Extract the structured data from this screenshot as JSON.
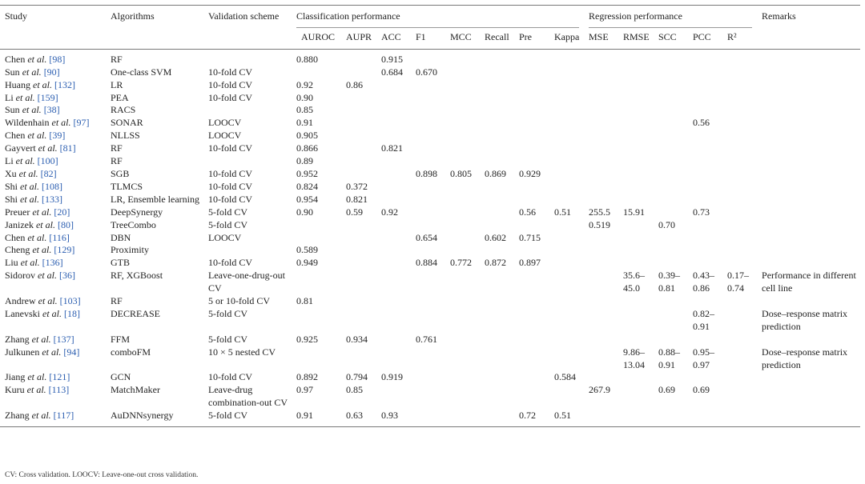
{
  "header": {
    "study": "Study",
    "algorithms": "Algorithms",
    "validation": "Validation scheme",
    "classification": "Classification performance",
    "regression": "Regression performance",
    "remarks": "Remarks",
    "metrics": [
      "AUROC",
      "AUPR",
      "ACC",
      "F1",
      "MCC",
      "Recall",
      "Pre",
      "Kappa",
      "MSE",
      "RMSE",
      "SCC",
      "PCC",
      "R²"
    ]
  },
  "table": {
    "rows": [
      {
        "study": {
          "name": "Chen",
          "etal": "et al.",
          "ref": "[98]"
        },
        "cells": [
          "RF",
          null,
          "0.880",
          null,
          "0.915",
          null,
          null,
          null,
          null,
          null,
          null,
          null,
          null,
          null,
          null,
          null
        ]
      },
      {
        "study": {
          "name": "Sun",
          "etal": "et al.",
          "ref": "[90]"
        },
        "cells": [
          "One-class SVM",
          "10-fold CV",
          null,
          null,
          "0.684",
          "0.670",
          null,
          null,
          null,
          null,
          null,
          null,
          null,
          null,
          null,
          null
        ]
      },
      {
        "study": {
          "name": "Huang",
          "etal": "et al.",
          "ref": "[132]"
        },
        "cells": [
          "LR",
          "10-fold CV",
          "0.92",
          "0.86",
          null,
          null,
          null,
          null,
          null,
          null,
          null,
          null,
          null,
          null,
          null,
          null
        ]
      },
      {
        "study": {
          "name": "Li",
          "etal": "et al.",
          "ref": "[159]"
        },
        "cells": [
          "PEA",
          "10-fold CV",
          "0.90",
          null,
          null,
          null,
          null,
          null,
          null,
          null,
          null,
          null,
          null,
          null,
          null,
          null
        ]
      },
      {
        "study": {
          "name": "Sun",
          "etal": "et al.",
          "ref": "[38]"
        },
        "cells": [
          "RACS",
          null,
          "0.85",
          null,
          null,
          null,
          null,
          null,
          null,
          null,
          null,
          null,
          null,
          null,
          null,
          null
        ]
      },
      {
        "study": {
          "name": "Wildenhain",
          "etal": "et al.",
          "ref": "[97]"
        },
        "cells": [
          "SONAR",
          "LOOCV",
          "0.91",
          null,
          null,
          null,
          null,
          null,
          null,
          null,
          null,
          null,
          null,
          "0.56",
          null,
          null
        ]
      },
      {
        "study": {
          "name": "Chen",
          "etal": "et al.",
          "ref": "[39]"
        },
        "cells": [
          "NLLSS",
          "LOOCV",
          "0.905",
          null,
          null,
          null,
          null,
          null,
          null,
          null,
          null,
          null,
          null,
          null,
          null,
          null
        ]
      },
      {
        "study": {
          "name": "Gayvert",
          "etal": "et al.",
          "ref": "[81]"
        },
        "cells": [
          "RF",
          "10-fold CV",
          "0.866",
          null,
          "0.821",
          null,
          null,
          null,
          null,
          null,
          null,
          null,
          null,
          null,
          null,
          null
        ]
      },
      {
        "study": {
          "name": "Li",
          "etal": "et al.",
          "ref": "[100]"
        },
        "cells": [
          "RF",
          null,
          "0.89",
          null,
          null,
          null,
          null,
          null,
          null,
          null,
          null,
          null,
          null,
          null,
          null,
          null
        ]
      },
      {
        "study": {
          "name": "Xu",
          "etal": "et al.",
          "ref": "[82]"
        },
        "cells": [
          "SGB",
          "10-fold CV",
          "0.952",
          null,
          null,
          "0.898",
          "0.805",
          "0.869",
          "0.929",
          null,
          null,
          null,
          null,
          null,
          null,
          null
        ]
      },
      {
        "study": {
          "name": "Shi",
          "etal": "et al.",
          "ref": "[108]"
        },
        "cells": [
          "TLMCS",
          "10-fold CV",
          "0.824",
          "0.372",
          null,
          null,
          null,
          null,
          null,
          null,
          null,
          null,
          null,
          null,
          null,
          null
        ]
      },
      {
        "study": {
          "name": "Shi",
          "etal": "et al.",
          "ref": "[133]"
        },
        "cells": [
          "LR, Ensemble learning",
          "10-fold CV",
          "0.954",
          "0.821",
          null,
          null,
          null,
          null,
          null,
          null,
          null,
          null,
          null,
          null,
          null,
          null
        ]
      },
      {
        "study": {
          "name": "Preuer",
          "etal": "et al.",
          "ref": "[20]"
        },
        "cells": [
          "DeepSynergy",
          "5-fold CV",
          "0.90",
          "0.59",
          "0.92",
          null,
          null,
          null,
          "0.56",
          "0.51",
          "255.5",
          "15.91",
          null,
          "0.73",
          null,
          null
        ]
      },
      {
        "study": {
          "name": "Janizek",
          "etal": "et al.",
          "ref": "[80]"
        },
        "cells": [
          "TreeCombo",
          "5-fold CV",
          null,
          null,
          null,
          null,
          null,
          null,
          null,
          null,
          "0.519",
          null,
          "0.70",
          null,
          null,
          null
        ]
      },
      {
        "study": {
          "name": "Chen",
          "etal": "et al.",
          "ref": "[116]"
        },
        "cells": [
          "DBN",
          "LOOCV",
          null,
          null,
          null,
          "0.654",
          null,
          "0.602",
          "0.715",
          null,
          null,
          null,
          null,
          null,
          null,
          null
        ]
      },
      {
        "study": {
          "name": "Cheng",
          "etal": "et al.",
          "ref": "[129]"
        },
        "cells": [
          "Proximity",
          null,
          "0.589",
          null,
          null,
          null,
          null,
          null,
          null,
          null,
          null,
          null,
          null,
          null,
          null,
          null
        ]
      },
      {
        "study": {
          "name": "Liu",
          "etal": "et al.",
          "ref": "[136]"
        },
        "cells": [
          "GTB",
          "10-fold CV",
          "0.949",
          null,
          null,
          "0.884",
          "0.772",
          "0.872",
          "0.897",
          null,
          null,
          null,
          null,
          null,
          null,
          null
        ]
      },
      {
        "study": {
          "name": "Sidorov",
          "etal": "et al.",
          "ref": "[36]"
        },
        "cells": [
          "RF, XGBoost",
          "Leave-one-drug-out CV",
          null,
          null,
          null,
          null,
          null,
          null,
          null,
          null,
          null,
          "35.6–45.0",
          "0.39–0.81",
          "0.43–0.86",
          "0.17–0.74",
          "Performance in different cell line"
        ]
      },
      {
        "study": {
          "name": "Andrew",
          "etal": "et al.",
          "ref": "[103]"
        },
        "cells": [
          "RF",
          "5 or 10-fold CV",
          "0.81",
          null,
          null,
          null,
          null,
          null,
          null,
          null,
          null,
          null,
          null,
          null,
          null,
          null
        ]
      },
      {
        "study": {
          "name": "Lanevski",
          "etal": "et al.",
          "ref": "[18]"
        },
        "cells": [
          "DECREASE",
          "5-fold CV",
          null,
          null,
          null,
          null,
          null,
          null,
          null,
          null,
          null,
          null,
          null,
          "0.82–0.91",
          null,
          "Dose–response matrix prediction"
        ]
      },
      {
        "study": {
          "name": "Zhang",
          "etal": "et al.",
          "ref": "[137]"
        },
        "cells": [
          "FFM",
          "5-fold CV",
          "0.925",
          "0.934",
          null,
          "0.761",
          null,
          null,
          null,
          null,
          null,
          null,
          null,
          null,
          null,
          null
        ]
      },
      {
        "study": {
          "name": "Julkunen",
          "etal": "et al.",
          "ref": "[94]"
        },
        "cells": [
          "comboFM",
          "10 × 5 nested CV",
          null,
          null,
          null,
          null,
          null,
          null,
          null,
          null,
          null,
          "9.86–13.04",
          "0.88–0.91",
          "0.95–0.97",
          null,
          "Dose–response matrix prediction"
        ]
      },
      {
        "study": {
          "name": "Jiang",
          "etal": "et al.",
          "ref": "[121]"
        },
        "cells": [
          "GCN",
          "10-fold CV",
          "0.892",
          "0.794",
          "0.919",
          null,
          null,
          null,
          null,
          "0.584",
          null,
          null,
          null,
          null,
          null,
          null
        ]
      },
      {
        "study": {
          "name": "Kuru",
          "etal": "et al.",
          "ref": "[113]"
        },
        "cells": [
          "MatchMaker",
          "Leave-drug combination-out CV",
          "0.97",
          "0.85",
          null,
          null,
          null,
          null,
          null,
          null,
          "267.9",
          null,
          "0.69",
          "0.69",
          null,
          null
        ]
      },
      {
        "study": {
          "name": "Zhang",
          "etal": "et al.",
          "ref": "[117]"
        },
        "cells": [
          "AuDNNsynergy",
          "5-fold CV",
          "0.91",
          "0.63",
          "0.93",
          null,
          null,
          null,
          "0.72",
          "0.51",
          null,
          null,
          null,
          null,
          null,
          null
        ]
      }
    ]
  },
  "footnote": "CV: Cross validation. LOOCV: Leave-one-out cross validation."
}
